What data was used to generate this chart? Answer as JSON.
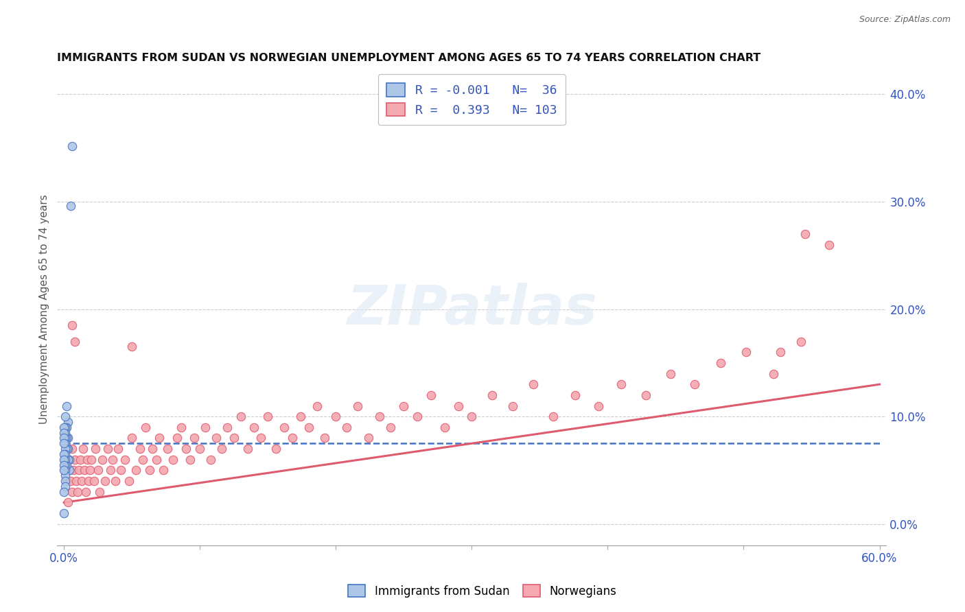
{
  "title": "IMMIGRANTS FROM SUDAN VS NORWEGIAN UNEMPLOYMENT AMONG AGES 65 TO 74 YEARS CORRELATION CHART",
  "source": "Source: ZipAtlas.com",
  "ylabel": "Unemployment Among Ages 65 to 74 years",
  "xlim": [
    -0.005,
    0.605
  ],
  "ylim": [
    -0.02,
    0.42
  ],
  "xticks": [
    0.0,
    0.1,
    0.2,
    0.3,
    0.4,
    0.5,
    0.6
  ],
  "xtick_labels": [
    "0.0%",
    "",
    "",
    "",
    "",
    "",
    "60.0%"
  ],
  "yticks_right": [
    0.0,
    0.1,
    0.2,
    0.3,
    0.4
  ],
  "ytick_labels_right": [
    "0.0%",
    "10.0%",
    "20.0%",
    "30.0%",
    "40.0%"
  ],
  "color_sudan": "#aec6e8",
  "color_norway": "#f4a8b0",
  "color_sudan_line": "#4472c4",
  "color_norway_line": "#e05a6e",
  "watermark": "ZIPatlas",
  "background_color": "#ffffff",
  "sudan_x": [
    0.006,
    0.005,
    0.004,
    0.004,
    0.003,
    0.003,
    0.003,
    0.003,
    0.002,
    0.002,
    0.002,
    0.002,
    0.002,
    0.001,
    0.001,
    0.001,
    0.001,
    0.001,
    0.001,
    0.001,
    0.001,
    0.001,
    0.001,
    0.001,
    0.001,
    0.001,
    0.0,
    0.0,
    0.0,
    0.0,
    0.0,
    0.0,
    0.0,
    0.0,
    0.0,
    0.0
  ],
  "sudan_y": [
    0.352,
    0.296,
    0.06,
    0.05,
    0.095,
    0.08,
    0.07,
    0.06,
    0.11,
    0.09,
    0.08,
    0.07,
    0.055,
    0.1,
    0.09,
    0.085,
    0.08,
    0.075,
    0.07,
    0.065,
    0.06,
    0.055,
    0.05,
    0.045,
    0.04,
    0.035,
    0.09,
    0.085,
    0.08,
    0.075,
    0.065,
    0.06,
    0.055,
    0.05,
    0.03,
    0.01
  ],
  "norway_x": [
    0.002,
    0.003,
    0.003,
    0.004,
    0.005,
    0.006,
    0.006,
    0.007,
    0.008,
    0.009,
    0.01,
    0.011,
    0.012,
    0.013,
    0.014,
    0.015,
    0.016,
    0.017,
    0.018,
    0.019,
    0.02,
    0.022,
    0.023,
    0.025,
    0.026,
    0.028,
    0.03,
    0.032,
    0.034,
    0.036,
    0.038,
    0.04,
    0.042,
    0.045,
    0.048,
    0.05,
    0.053,
    0.056,
    0.058,
    0.06,
    0.063,
    0.065,
    0.068,
    0.07,
    0.073,
    0.076,
    0.08,
    0.083,
    0.086,
    0.09,
    0.093,
    0.096,
    0.1,
    0.104,
    0.108,
    0.112,
    0.116,
    0.12,
    0.125,
    0.13,
    0.135,
    0.14,
    0.145,
    0.15,
    0.156,
    0.162,
    0.168,
    0.174,
    0.18,
    0.186,
    0.192,
    0.2,
    0.208,
    0.216,
    0.224,
    0.232,
    0.24,
    0.25,
    0.26,
    0.27,
    0.28,
    0.29,
    0.3,
    0.315,
    0.33,
    0.345,
    0.36,
    0.376,
    0.393,
    0.41,
    0.428,
    0.446,
    0.464,
    0.483,
    0.502,
    0.522,
    0.542,
    0.563,
    0.545,
    0.527,
    0.006,
    0.008,
    0.05
  ],
  "norway_y": [
    0.04,
    0.02,
    0.06,
    0.05,
    0.04,
    0.07,
    0.03,
    0.05,
    0.06,
    0.04,
    0.03,
    0.05,
    0.06,
    0.04,
    0.07,
    0.05,
    0.03,
    0.06,
    0.04,
    0.05,
    0.06,
    0.04,
    0.07,
    0.05,
    0.03,
    0.06,
    0.04,
    0.07,
    0.05,
    0.06,
    0.04,
    0.07,
    0.05,
    0.06,
    0.04,
    0.08,
    0.05,
    0.07,
    0.06,
    0.09,
    0.05,
    0.07,
    0.06,
    0.08,
    0.05,
    0.07,
    0.06,
    0.08,
    0.09,
    0.07,
    0.06,
    0.08,
    0.07,
    0.09,
    0.06,
    0.08,
    0.07,
    0.09,
    0.08,
    0.1,
    0.07,
    0.09,
    0.08,
    0.1,
    0.07,
    0.09,
    0.08,
    0.1,
    0.09,
    0.11,
    0.08,
    0.1,
    0.09,
    0.11,
    0.08,
    0.1,
    0.09,
    0.11,
    0.1,
    0.12,
    0.09,
    0.11,
    0.1,
    0.12,
    0.11,
    0.13,
    0.1,
    0.12,
    0.11,
    0.13,
    0.12,
    0.14,
    0.13,
    0.15,
    0.16,
    0.14,
    0.17,
    0.26,
    0.27,
    0.16,
    0.185,
    0.17,
    0.165
  ],
  "norway_trend_start": 0.02,
  "norway_trend_end": 0.13,
  "sudan_trend_y": 0.075
}
